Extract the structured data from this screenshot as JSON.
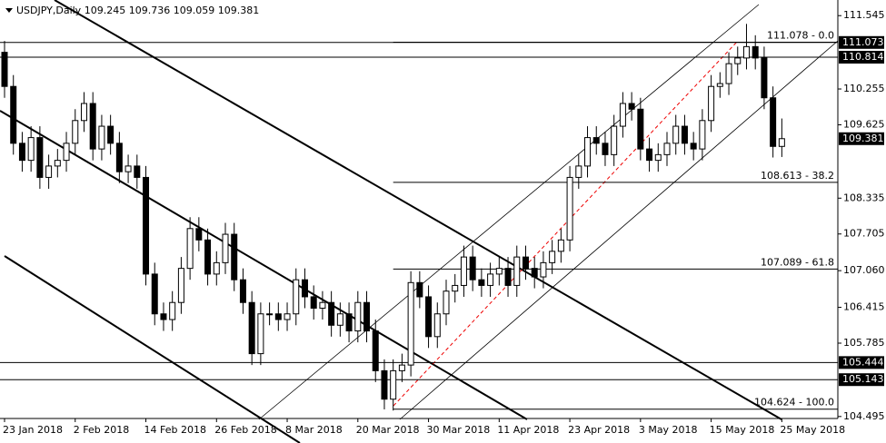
{
  "chart_data": {
    "type": "candlestick",
    "title": "USDJPY,Daily",
    "open": [
      110.9,
      110.3,
      109.3,
      109.0,
      109.4,
      108.7,
      108.9,
      109.0,
      109.3,
      109.7,
      110.0,
      109.2,
      109.6,
      109.3,
      108.8,
      108.9,
      108.7,
      107.0,
      106.3,
      106.2,
      106.5,
      107.1,
      107.8,
      107.6,
      107.0,
      107.2,
      107.7,
      106.9,
      106.5,
      105.6,
      106.3,
      106.3,
      106.2,
      106.3,
      106.9,
      106.6,
      106.4,
      106.5,
      106.1,
      106.3,
      106.0,
      106.5,
      106.0,
      105.3,
      104.8,
      105.3,
      105.4,
      106.85,
      106.6,
      105.9,
      106.3,
      106.7,
      106.8,
      107.3,
      106.9,
      106.8,
      107.0,
      107.1,
      106.8,
      107.3,
      107.1,
      106.95,
      107.2,
      107.4,
      107.6,
      108.7,
      108.9,
      109.4,
      109.3,
      109.1,
      109.6,
      110.0,
      109.9,
      109.2,
      109.0,
      109.1,
      109.3,
      109.6,
      109.3,
      109.2,
      109.7,
      110.3,
      110.35,
      110.7,
      110.8,
      111.0,
      110.8,
      110.1,
      109.245
    ],
    "high": [
      111.1,
      110.5,
      109.5,
      109.6,
      109.6,
      109.1,
      109.2,
      109.5,
      109.9,
      110.2,
      110.2,
      109.8,
      109.8,
      109.5,
      109.1,
      109.1,
      108.9,
      107.2,
      106.5,
      106.7,
      107.3,
      108.0,
      108.0,
      107.8,
      107.4,
      107.9,
      107.9,
      107.1,
      106.7,
      106.5,
      106.5,
      106.5,
      106.5,
      107.1,
      107.1,
      106.8,
      106.7,
      106.7,
      106.5,
      106.5,
      106.7,
      106.7,
      106.2,
      105.5,
      105.5,
      105.6,
      107.05,
      107.05,
      106.8,
      106.5,
      106.9,
      107.0,
      107.5,
      107.5,
      107.1,
      107.2,
      107.3,
      107.3,
      107.5,
      107.5,
      107.3,
      107.4,
      107.6,
      107.8,
      108.9,
      109.1,
      109.6,
      109.6,
      109.5,
      109.8,
      110.2,
      110.2,
      110.1,
      109.4,
      109.3,
      109.5,
      109.8,
      109.8,
      109.5,
      109.9,
      110.5,
      110.55,
      110.9,
      111.0,
      111.4,
      111.2,
      111.0,
      110.3,
      109.736
    ],
    "low": [
      110.1,
      109.1,
      108.8,
      108.8,
      108.5,
      108.5,
      108.7,
      108.8,
      109.1,
      109.5,
      109.0,
      109.0,
      109.1,
      108.6,
      108.6,
      108.5,
      106.8,
      106.1,
      106.0,
      106.0,
      106.3,
      106.9,
      107.4,
      106.8,
      106.8,
      107.0,
      106.7,
      106.3,
      105.4,
      105.4,
      106.1,
      106.0,
      106.0,
      106.1,
      106.4,
      106.2,
      106.2,
      105.9,
      105.9,
      105.8,
      105.8,
      105.8,
      105.1,
      104.62,
      104.6,
      105.1,
      105.2,
      106.4,
      105.7,
      105.7,
      106.1,
      106.5,
      106.6,
      106.7,
      106.6,
      106.6,
      106.8,
      106.6,
      106.6,
      106.9,
      106.75,
      106.75,
      107.0,
      107.2,
      107.4,
      108.5,
      108.7,
      109.1,
      108.9,
      108.9,
      109.4,
      109.7,
      109.0,
      108.8,
      108.8,
      108.9,
      109.1,
      109.1,
      109.0,
      109.0,
      109.5,
      110.1,
      110.15,
      110.5,
      110.6,
      110.6,
      109.9,
      109.05,
      109.059
    ],
    "close": [
      110.3,
      109.3,
      109.0,
      109.4,
      108.7,
      108.9,
      109.0,
      109.3,
      109.7,
      110.0,
      109.2,
      109.6,
      109.3,
      108.8,
      108.9,
      108.7,
      107.0,
      106.3,
      106.2,
      106.5,
      107.1,
      107.8,
      107.6,
      107.0,
      107.2,
      107.7,
      106.9,
      106.5,
      105.6,
      106.3,
      106.3,
      106.2,
      106.3,
      106.9,
      106.6,
      106.4,
      106.5,
      106.1,
      106.3,
      106.0,
      106.5,
      106.0,
      105.3,
      104.8,
      105.3,
      105.4,
      106.85,
      106.6,
      105.9,
      106.3,
      106.7,
      106.8,
      107.3,
      106.9,
      106.8,
      107.0,
      107.1,
      106.8,
      107.3,
      107.1,
      106.95,
      107.2,
      107.4,
      107.6,
      108.7,
      108.9,
      109.4,
      109.3,
      109.1,
      109.6,
      110.0,
      109.9,
      109.2,
      109.0,
      109.1,
      109.3,
      109.6,
      109.3,
      109.2,
      109.7,
      110.3,
      110.35,
      110.7,
      110.8,
      111.0,
      110.8,
      110.1,
      109.245,
      109.381
    ],
    "ylim": [
      104.46,
      111.82
    ],
    "yticks": [
      111.545,
      110.255,
      109.625,
      108.335,
      107.705,
      {
        "value": 107.06,
        "label": "107.060"
      },
      106.415,
      105.785,
      104.495
    ],
    "xticks": [
      {
        "value": 0,
        "label": "23 Jan 2018"
      },
      {
        "value": 8,
        "label": "2 Feb 2018"
      },
      {
        "value": 16,
        "label": "14 Feb 2018"
      },
      {
        "value": 24,
        "label": "26 Feb 2018"
      },
      {
        "value": 32,
        "label": "8 Mar 2018"
      },
      {
        "value": 40,
        "label": "20 Mar 2018"
      },
      {
        "value": 48,
        "label": "30 Mar 2018"
      },
      {
        "value": 56,
        "label": "11 Apr 2018"
      },
      {
        "value": 64,
        "label": "23 Apr 2018"
      },
      {
        "value": 72,
        "label": "3 May 2018"
      },
      {
        "value": 80,
        "label": "15 May 2018"
      },
      {
        "value": 88,
        "label": "25 May 2018"
      }
    ],
    "price_lines": [
      111.073,
      110.814,
      105.444,
      105.143
    ],
    "current_price": 109.381,
    "fib_levels": [
      {
        "value": 111.078,
        "label": "111.078 - 0.0"
      },
      {
        "value": 108.613,
        "label": "108.613 - 38.2"
      },
      {
        "value": 107.089,
        "label": "107.089 - 61.8"
      },
      {
        "value": 104.624,
        "label": "104.624 - 100.0"
      }
    ],
    "fib_start": 44,
    "bull_color": "#ffffff",
    "bear_color": "#000000",
    "line_color": "#000000"
  }
}
